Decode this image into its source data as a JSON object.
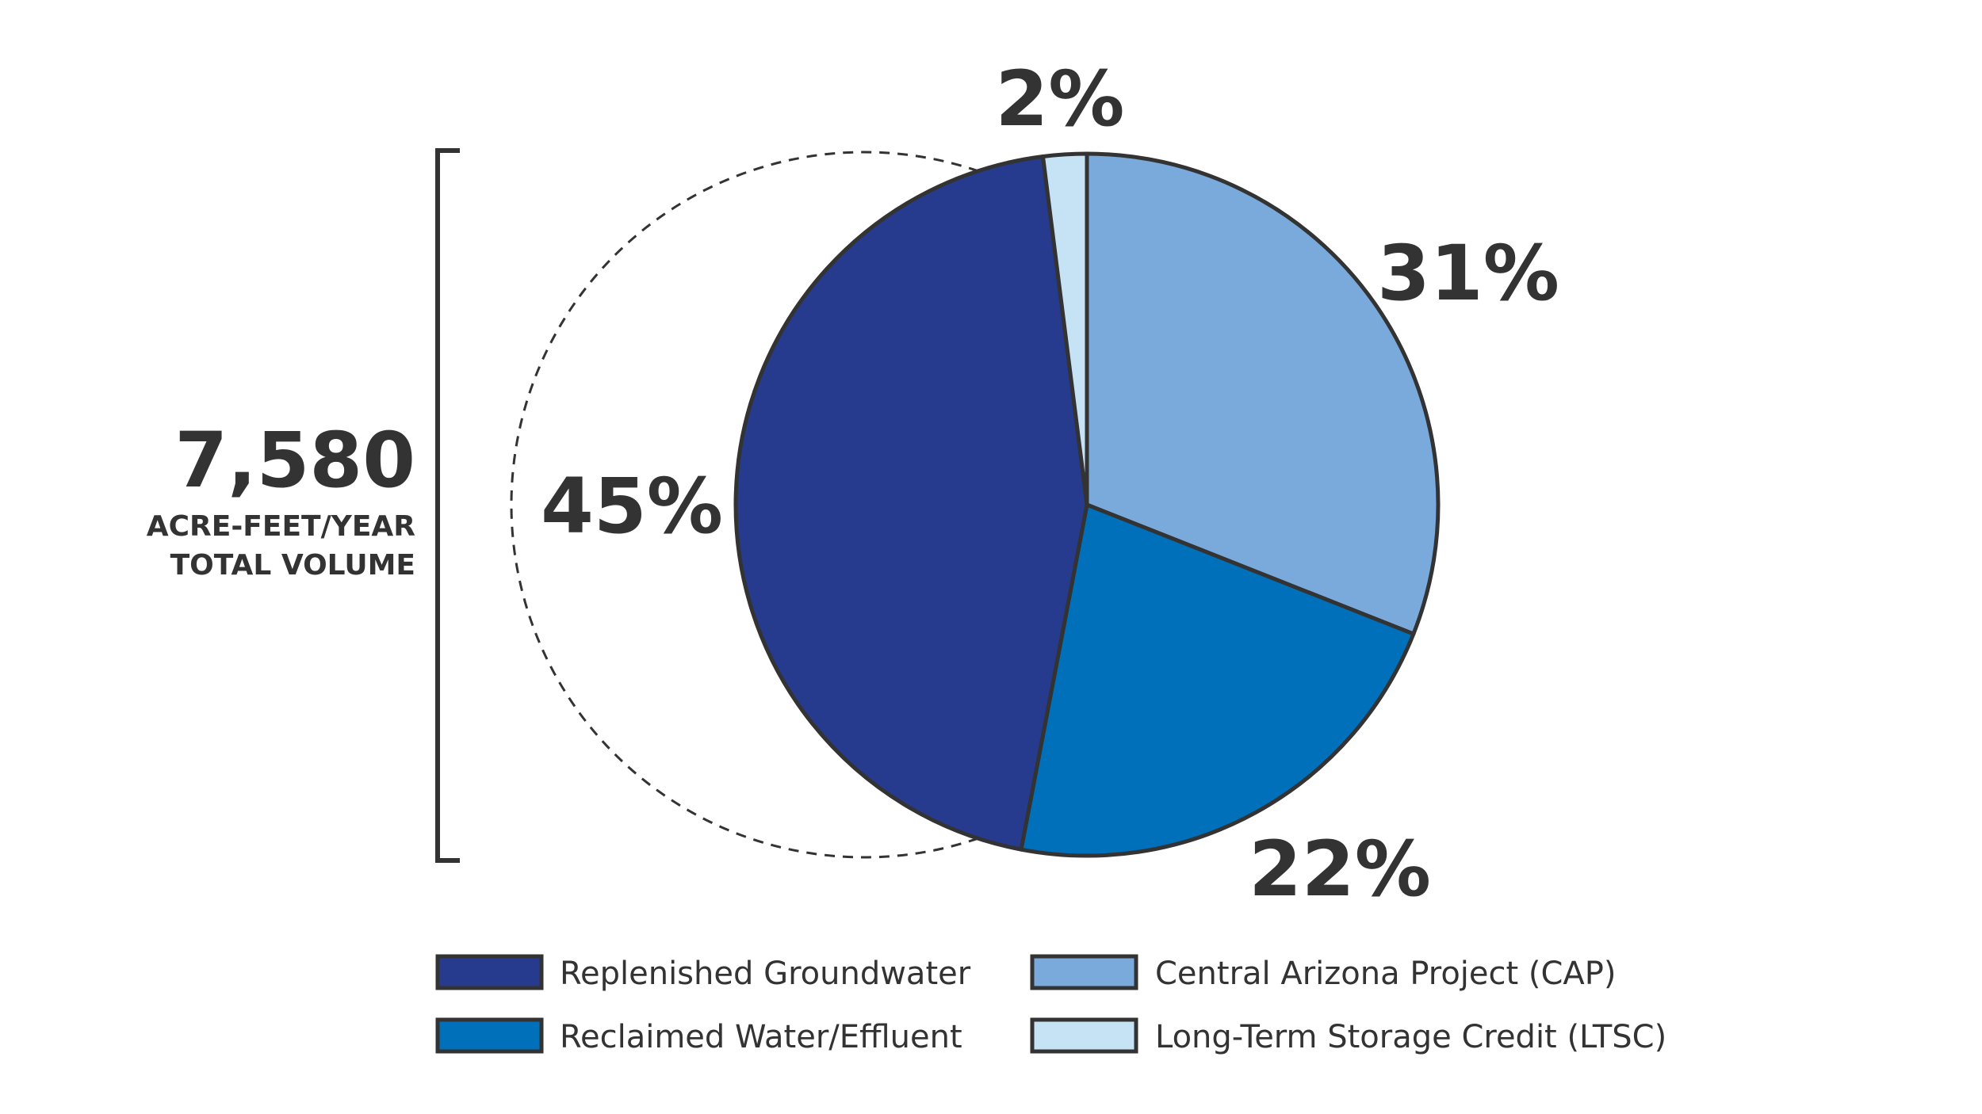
{
  "chart_data": {
    "type": "pie",
    "title": "",
    "total": {
      "value": "7,580",
      "caption_line1": "ACRE-FEET/YEAR",
      "caption_line2": "TOTAL VOLUME"
    },
    "slices": [
      {
        "name": "Central Arizona Project (CAP)",
        "value": 31,
        "label": "31%",
        "color": "#7aaadb"
      },
      {
        "name": "Reclaimed Water/Effluent",
        "value": 22,
        "label": "22%",
        "color": "#0070bb"
      },
      {
        "name": "Replenished Groundwater",
        "value": 45,
        "label": "45%",
        "color": "#273b8e"
      },
      {
        "name": "Long-Term Storage Credit (LTSC)",
        "value": 2,
        "label": "2%",
        "color": "#c6e3f5"
      }
    ],
    "legend": [
      {
        "name": "Replenished Groundwater",
        "color": "#273b8e"
      },
      {
        "name": "Central Arizona Project (CAP)",
        "color": "#7aaadb"
      },
      {
        "name": "Reclaimed Water/Effluent",
        "color": "#0070bb"
      },
      {
        "name": "Long-Term Storage Credit (LTSC)",
        "color": "#c6e3f5"
      }
    ],
    "stroke_color": "#333333",
    "start_direction": "top",
    "direction": "clockwise",
    "legend_position": "bottom"
  }
}
